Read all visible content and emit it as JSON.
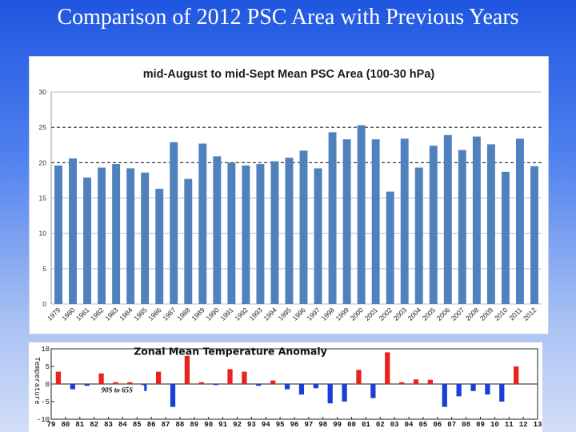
{
  "page": {
    "title": "Comparison of 2012 PSC Area with Previous Years"
  },
  "chart_data": [
    {
      "type": "bar",
      "title": "mid-August to mid-Sept Mean PSC Area (100-30 hPa)",
      "xlabel": "",
      "ylabel": "",
      "ylim": [
        0,
        30
      ],
      "yticks": [
        0,
        5,
        10,
        15,
        20,
        25,
        30
      ],
      "grid": "horizontal",
      "reference_lines": [
        20,
        25
      ],
      "bar_color": "#4f81bd",
      "categories": [
        "1979",
        "1980",
        "1981",
        "1982",
        "1983",
        "1984",
        "1985",
        "1986",
        "1987",
        "1988",
        "1989",
        "1990",
        "1991",
        "1992",
        "1993",
        "1994",
        "1995",
        "1996",
        "1997",
        "1998",
        "1999",
        "2000",
        "2001",
        "2002",
        "2003",
        "2004",
        "2005",
        "2006",
        "2007",
        "2008",
        "2009",
        "2010",
        "2011",
        "2012"
      ],
      "values": [
        19.6,
        20.6,
        17.9,
        19.3,
        19.8,
        19.2,
        18.6,
        16.3,
        22.9,
        17.7,
        22.7,
        20.9,
        20.0,
        19.6,
        19.8,
        20.2,
        20.7,
        21.7,
        19.2,
        24.3,
        23.3,
        25.3,
        23.3,
        15.9,
        23.4,
        19.3,
        22.4,
        23.9,
        21.8,
        23.7,
        22.6,
        18.7,
        23.4,
        19.5
      ]
    },
    {
      "type": "bar",
      "title": "Zonal Mean Temperature Anomaly",
      "annotation": "90S to 65S",
      "ylabel": "Temperature",
      "ylim": [
        -10,
        10
      ],
      "yticks": [
        -10,
        -5,
        0,
        5,
        10
      ],
      "positive_color": "#e8221c",
      "negative_color": "#1a3fd6",
      "x_labels": [
        "79",
        "80",
        "81",
        "82",
        "83",
        "84",
        "85",
        "86",
        "87",
        "88",
        "89",
        "90",
        "91",
        "92",
        "93",
        "94",
        "95",
        "96",
        "97",
        "98",
        "99",
        "00",
        "01",
        "02",
        "03",
        "04",
        "05",
        "06",
        "07",
        "08",
        "09",
        "10",
        "11",
        "12",
        "13"
      ],
      "values": [
        3.5,
        -1.5,
        -0.5,
        3.0,
        0.5,
        0.5,
        -2.0,
        3.5,
        -6.5,
        8.0,
        0.5,
        -0.3,
        4.2,
        3.5,
        -0.5,
        1.0,
        -1.5,
        -3.0,
        -1.2,
        -5.5,
        -5.0,
        4.0,
        -4.0,
        9.0,
        0.5,
        1.3,
        1.2,
        -6.5,
        -3.5,
        -2.0,
        -3.0,
        -5.0,
        5.0
      ]
    }
  ]
}
